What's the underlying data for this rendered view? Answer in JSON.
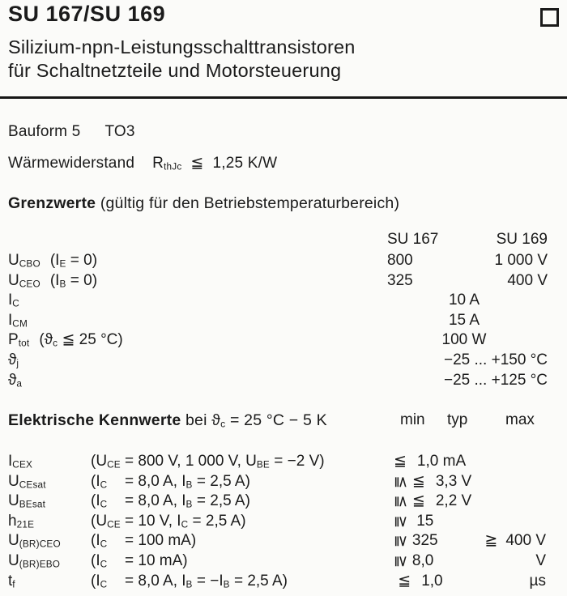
{
  "header": {
    "part_number": "SU 167/SU 169",
    "subtitle_line1": "Silizium-npn-Leistungsschalttransistoren",
    "subtitle_line2": "für Schaltnetzteile und Motorsteuerung",
    "corner_icon": "open-square"
  },
  "package_info": {
    "bauform_label": "Bauform 5",
    "bauform_package": "TO3",
    "thermal_label": "Wärmewiderstand",
    "thermal_runs": [
      {
        "t": "R"
      },
      {
        "t": "thJc",
        "s": 1
      },
      {
        "t": "  ≦  1,25 K/W"
      }
    ]
  },
  "grenzwerte": {
    "title": "Grenzwerte",
    "title_note": " (gültig für den Betriebstemperaturbereich)",
    "col1": "SU 167",
    "col2": "SU 169",
    "rows": [
      {
        "sym": [
          {
            "t": "U"
          },
          {
            "t": "CBO",
            "s": 1
          }
        ],
        "cond": [
          {
            "t": "(I"
          },
          {
            "t": "E",
            "s": 1
          },
          {
            "t": " = 0)"
          }
        ],
        "v167": "800",
        "v169": "1 000 V"
      },
      {
        "sym": [
          {
            "t": "U"
          },
          {
            "t": "CEO",
            "s": 1
          }
        ],
        "cond": [
          {
            "t": "(I"
          },
          {
            "t": "B",
            "s": 1
          },
          {
            "t": " = 0)"
          }
        ],
        "v167": "325",
        "v169": "400 V"
      },
      {
        "sym": [
          {
            "t": "I"
          },
          {
            "t": "C",
            "s": 1
          }
        ],
        "center": "10 A"
      },
      {
        "sym": [
          {
            "t": "I"
          },
          {
            "t": "CM",
            "s": 1
          }
        ],
        "center": "15 A"
      },
      {
        "sym": [
          {
            "t": "P"
          },
          {
            "t": "tot",
            "s": 1
          }
        ],
        "cond": [
          {
            "t": "(ϑ"
          },
          {
            "t": "c",
            "s": 1
          },
          {
            "t": " ≦ 25 °C)"
          }
        ],
        "center": "100 W"
      },
      {
        "sym": [
          {
            "t": "ϑ"
          },
          {
            "t": "j",
            "s": 1
          }
        ],
        "right": "−25 ... +150 °C"
      },
      {
        "sym": [
          {
            "t": "ϑ"
          },
          {
            "t": "a",
            "s": 1
          }
        ],
        "right": "−25 ... +125 °C"
      }
    ]
  },
  "kennwerte": {
    "title": "Elektrische Kennwerte",
    "title_note_runs": [
      {
        "t": " bei ϑ"
      },
      {
        "t": "c",
        "s": 1
      },
      {
        "t": " = 25 °C − 5 K"
      }
    ],
    "col_min": "min",
    "col_typ": "typ",
    "col_max": "max",
    "rows": [
      {
        "sym": [
          {
            "t": "I"
          },
          {
            "t": "CEX",
            "s": 1
          }
        ],
        "cond_sym": [
          {
            "t": "(U"
          },
          {
            "t": "CE",
            "s": 1
          }
        ],
        "cond_rest": [
          {
            "t": "= 800 V, 1 000 V, U"
          },
          {
            "t": "BE",
            "s": 1
          },
          {
            "t": " = −2 V)"
          }
        ],
        "left": [
          {
            "t": "≦",
            "c": "rel"
          },
          {
            "t": "1,0 mA"
          }
        ]
      },
      {
        "sym": [
          {
            "t": "U"
          },
          {
            "t": "CEsat",
            "s": 1
          }
        ],
        "cond_sym": [
          {
            "t": "(I"
          },
          {
            "t": "C",
            "s": 1
          }
        ],
        "cond_rest": [
          {
            "t": "= 8,0 A, I"
          },
          {
            "t": "B",
            "s": 1
          },
          {
            "t": " = 2,5 A)"
          }
        ],
        "left": [
          {
            "t": "≦",
            "c": "rot"
          },
          {
            "t": "≦",
            "c": "rel"
          },
          {
            "t": "3,3 V"
          }
        ]
      },
      {
        "sym": [
          {
            "t": "U"
          },
          {
            "t": "BEsat",
            "s": 1
          }
        ],
        "cond_sym": [
          {
            "t": "(I"
          },
          {
            "t": "C",
            "s": 1
          }
        ],
        "cond_rest": [
          {
            "t": "= 8,0 A, I"
          },
          {
            "t": "B",
            "s": 1
          },
          {
            "t": " = 2,5 A)"
          }
        ],
        "left": [
          {
            "t": "≦",
            "c": "rot"
          },
          {
            "t": "≦",
            "c": "rel"
          },
          {
            "t": "2,2 V"
          }
        ]
      },
      {
        "sym": [
          {
            "t": "h"
          },
          {
            "t": "21E",
            "s": 1
          }
        ],
        "cond_sym": [
          {
            "t": "(U"
          },
          {
            "t": "CE",
            "s": 1
          }
        ],
        "cond_rest": [
          {
            "t": "= 10 V, I"
          },
          {
            "t": "C",
            "s": 1
          },
          {
            "t": " = 2,5 A)"
          }
        ],
        "left": [
          {
            "t": "≧",
            "c": "rot"
          },
          {
            "t": " 15"
          }
        ]
      },
      {
        "sym": [
          {
            "t": "U"
          },
          {
            "t": "(BR)CEO",
            "s": 1
          }
        ],
        "cond_sym": [
          {
            "t": "(I"
          },
          {
            "t": "C",
            "s": 1
          }
        ],
        "cond_rest": [
          {
            "t": "= 100 mA)"
          }
        ],
        "left": [
          {
            "t": "≧",
            "c": "rot"
          },
          {
            "t": "325"
          }
        ],
        "right": [
          {
            "t": "≧",
            "c": "relr"
          },
          {
            "t": "400 V"
          }
        ]
      },
      {
        "sym": [
          {
            "t": "U"
          },
          {
            "t": "(BR)EBO",
            "s": 1
          }
        ],
        "cond_sym": [
          {
            "t": "(I"
          },
          {
            "t": "C",
            "s": 1
          }
        ],
        "cond_rest": [
          {
            "t": "= 10 mA)"
          }
        ],
        "left": [
          {
            "t": "≧",
            "c": "rot"
          },
          {
            "t": "8,0"
          }
        ],
        "right": [
          {
            "t": "V"
          }
        ]
      },
      {
        "sym": [
          {
            "t": "t"
          },
          {
            "t": "f",
            "s": 1
          }
        ],
        "cond_sym": [
          {
            "t": "(I"
          },
          {
            "t": "C",
            "s": 1
          }
        ],
        "cond_rest": [
          {
            "t": "= 8,0 A, I"
          },
          {
            "t": "B",
            "s": 1
          },
          {
            "t": " = −I"
          },
          {
            "t": "B",
            "s": 1
          },
          {
            "t": " = 2,5 A)"
          }
        ],
        "left": [
          {
            "t": " ≦",
            "c": "rel"
          },
          {
            "t": "1,0"
          }
        ],
        "right": [
          {
            "t": "µs"
          }
        ]
      }
    ]
  }
}
